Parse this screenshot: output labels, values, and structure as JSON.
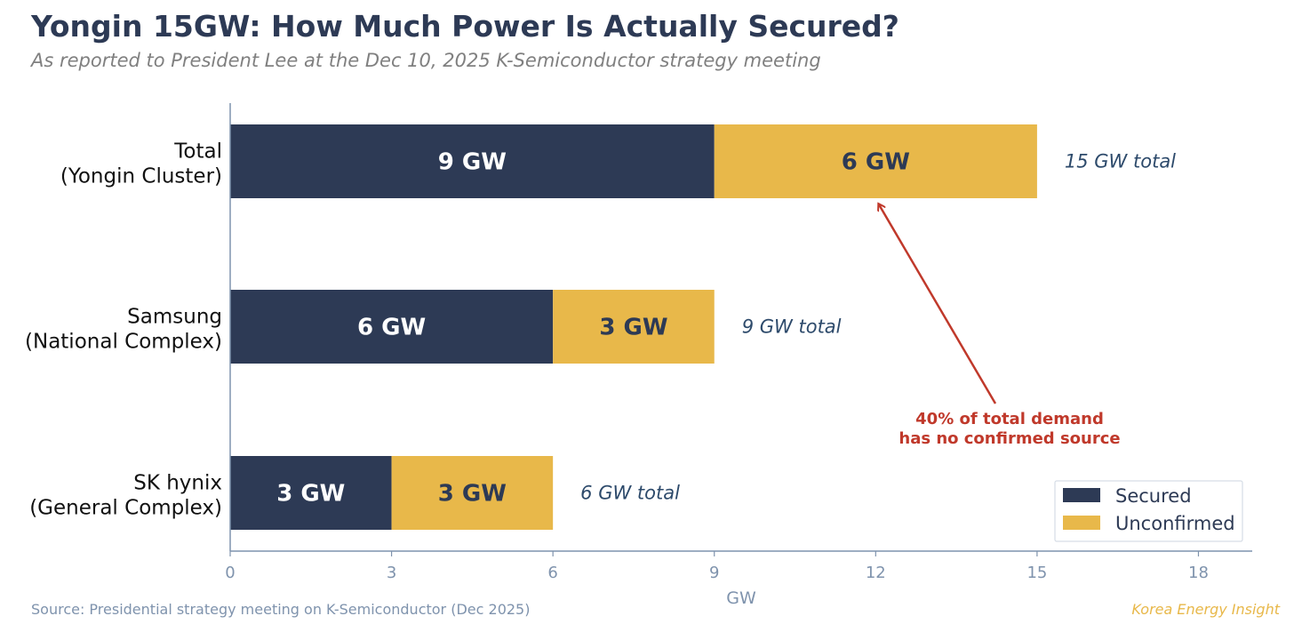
{
  "header": {
    "title": "Yongin 15GW: How Much Power Is Actually Secured?",
    "subtitle": "As reported to President Lee at the Dec 10, 2025 K-Semiconductor strategy meeting"
  },
  "footer": {
    "source": "Source: Presidential strategy meeting on K-Semiconductor (Dec 2025)",
    "brand": "Korea Energy Insight"
  },
  "colors": {
    "secured": "#2d3a55",
    "unconfirmed": "#e8b84a",
    "annotation": "#c0392b",
    "axis": "#7f93ad",
    "total_label": "#2d4a6b"
  },
  "chart_data": {
    "type": "bar",
    "orientation": "horizontal",
    "stacked": true,
    "categories": [
      {
        "line1": "Total",
        "line2": "(Yongin Cluster)"
      },
      {
        "line1": "Samsung",
        "line2": "(National Complex)"
      },
      {
        "line1": "SK hynix",
        "line2": "(General Complex)"
      }
    ],
    "series": [
      {
        "name": "Secured",
        "values": [
          9,
          6,
          3
        ],
        "labels": [
          "9 GW",
          "6 GW",
          "3 GW"
        ]
      },
      {
        "name": "Unconfirmed",
        "values": [
          6,
          3,
          3
        ],
        "labels": [
          "6 GW",
          "3 GW",
          "3 GW"
        ]
      }
    ],
    "total_labels": [
      "15 GW total",
      "9 GW total",
      "6 GW total"
    ],
    "xlabel": "GW",
    "xlim": [
      0,
      19
    ],
    "xticks": [
      0,
      3,
      6,
      9,
      12,
      15,
      18
    ],
    "legend": {
      "entries": [
        "Secured",
        "Unconfirmed"
      ],
      "placement": "bottom-right"
    },
    "annotation": {
      "lines": [
        "40% of total demand",
        "has no confirmed source"
      ],
      "points_to": {
        "category": "Total (Yongin Cluster)",
        "series": "Unconfirmed",
        "x": 12
      }
    }
  }
}
